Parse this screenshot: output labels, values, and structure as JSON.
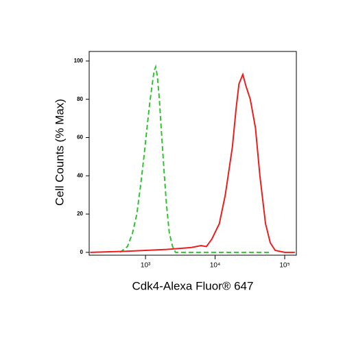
{
  "chart_data": {
    "type": "line",
    "x_label": "Cdk4-Alexa Fluor® 647",
    "y_label": "Cell Counts (% Max)",
    "log_x": true,
    "xlim": [
      155,
      147000
    ],
    "ylim": [
      -1.5,
      105
    ],
    "xticks": [
      {
        "value": 1000,
        "label": "10³"
      },
      {
        "value": 10000,
        "label": "10⁴"
      },
      {
        "value": 100000,
        "label": "10⁵"
      }
    ],
    "yticks": [
      0,
      20,
      40,
      60,
      80,
      100
    ],
    "series": [
      {
        "color": "#2fc42f",
        "dashed": true,
        "x": [
          430,
          550,
          650,
          750,
          850,
          950,
          1050,
          1150,
          1250,
          1330,
          1400,
          1480,
          1580,
          1700,
          1850,
          2000,
          2200,
          2450,
          2700,
          5000,
          10000,
          30000,
          60000
        ],
        "values": [
          0,
          3,
          10,
          20,
          35,
          50,
          65,
          78,
          88,
          95,
          97,
          92,
          80,
          62,
          42,
          25,
          10,
          3,
          0,
          0,
          0,
          0,
          0
        ]
      },
      {
        "color": "#ee1c1c",
        "dashed": false,
        "x": [
          160,
          500,
          1000,
          2000,
          3000,
          4500,
          6300,
          7500,
          9000,
          11500,
          14000,
          17700,
          20000,
          22000,
          25000,
          27700,
          32000,
          38000,
          44000,
          53000,
          62000,
          73000,
          100000,
          140000
        ],
        "values": [
          0,
          0.5,
          1,
          1.5,
          2,
          2.5,
          3.5,
          3,
          7,
          15,
          30,
          55,
          75,
          88,
          93,
          87,
          80,
          65,
          40,
          15,
          5,
          1,
          0,
          0
        ]
      }
    ]
  }
}
